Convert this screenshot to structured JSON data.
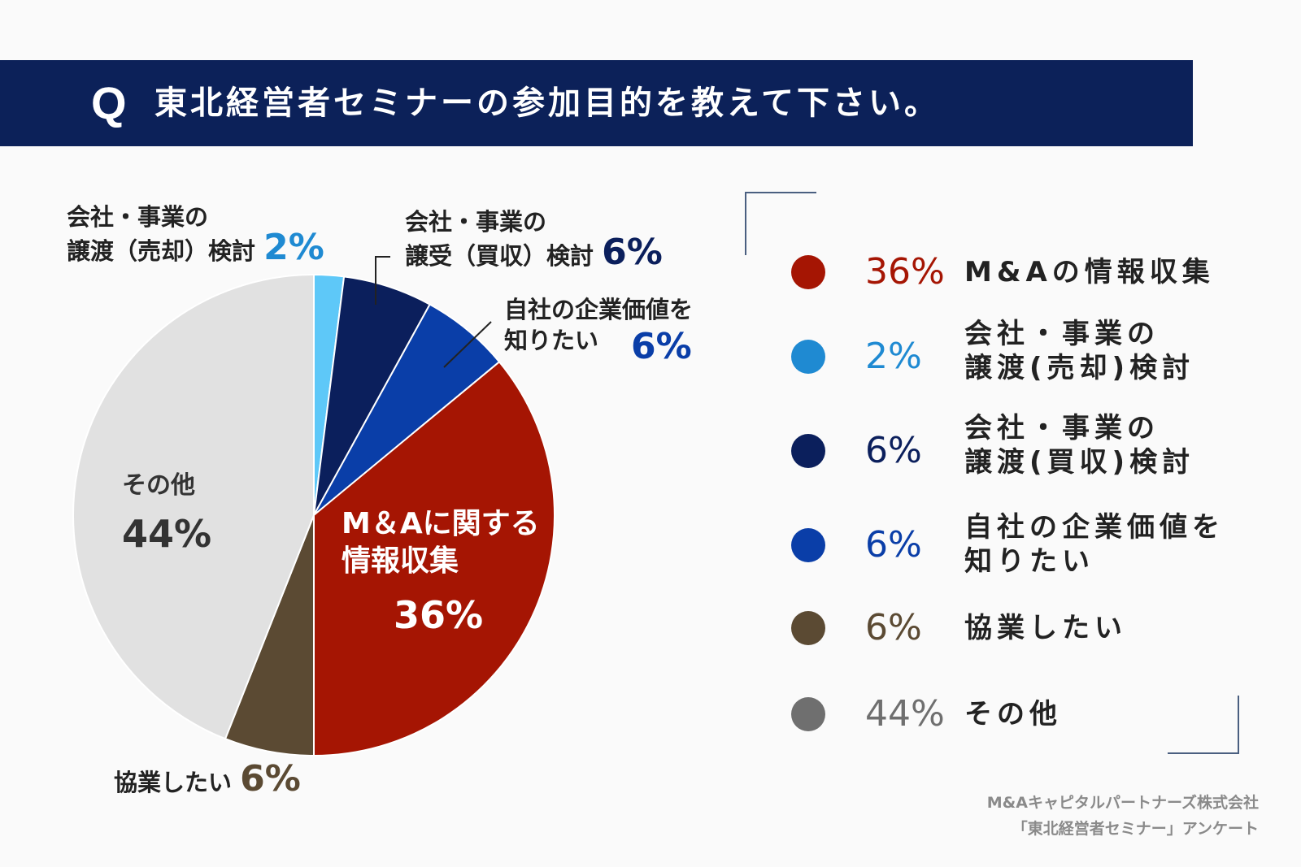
{
  "header": {
    "q_mark": "Q",
    "title": "東北経営者セミナーの参加目的を教えて下さい。"
  },
  "colors": {
    "header_bg": "#0c2159",
    "info": "#a51503",
    "sell": "#3aa0e6",
    "sell_light": "#5ec8f8",
    "buy": "#0b1f5c",
    "value": "#0a3ea8",
    "collab": "#5b4a33",
    "other": "#e1e1e1",
    "other_dot": "#6f6f6f"
  },
  "chart_data": {
    "type": "pie",
    "title": "東北経営者セミナーの参加目的を教えて下さい。",
    "start": "12 o'clock",
    "direction": "clockwise",
    "slices": [
      {
        "key": "sell",
        "label": "会社・事業の譲渡（売却）検討",
        "value": 2,
        "pct_text": "2%"
      },
      {
        "key": "buy",
        "label": "会社・事業の譲受（買収）検討",
        "value": 6,
        "pct_text": "6%"
      },
      {
        "key": "value",
        "label": "自社の企業価値を知りたい",
        "value": 6,
        "pct_text": "6%"
      },
      {
        "key": "info",
        "label": "M＆Aに関する情報収集",
        "value": 36,
        "pct_text": "36%"
      },
      {
        "key": "collab",
        "label": "協業したい",
        "value": 6,
        "pct_text": "6%"
      },
      {
        "key": "other",
        "label": "その他",
        "value": 44,
        "pct_text": "44%"
      }
    ]
  },
  "callouts": {
    "sell": {
      "line1": "会社・事業の",
      "line2": "譲渡（売却）検討",
      "pct": "2%"
    },
    "buy": {
      "line1": "会社・事業の",
      "line2": "譲受（買収）検討",
      "pct": "6%"
    },
    "value": {
      "line1": "自社の企業価値を",
      "line2": "知りたい",
      "pct": "6%"
    },
    "collab": {
      "label": "協業したい",
      "pct": "6%"
    },
    "info": {
      "line1": "M＆Aに関する",
      "line2": "情報収集",
      "pct": "36%"
    },
    "other": {
      "label": "その他",
      "pct": "44%"
    }
  },
  "legend": [
    {
      "pct": "36%",
      "line1": "M&Aの情報収集",
      "line2": ""
    },
    {
      "pct": "2%",
      "line1": "会社・事業の",
      "line2": "譲渡(売却)検討"
    },
    {
      "pct": "6%",
      "line1": "会社・事業の",
      "line2": "譲渡(買収)検討"
    },
    {
      "pct": "6%",
      "line1": "自社の企業価値を",
      "line2": "知りたい"
    },
    {
      "pct": "6%",
      "line1": "協業したい",
      "line2": ""
    },
    {
      "pct": "44%",
      "line1": "その他",
      "line2": ""
    }
  ],
  "footer": {
    "line1": "M&Aキャピタルパートナーズ株式会社",
    "line2": "「東北経営者セミナー」アンケート"
  }
}
